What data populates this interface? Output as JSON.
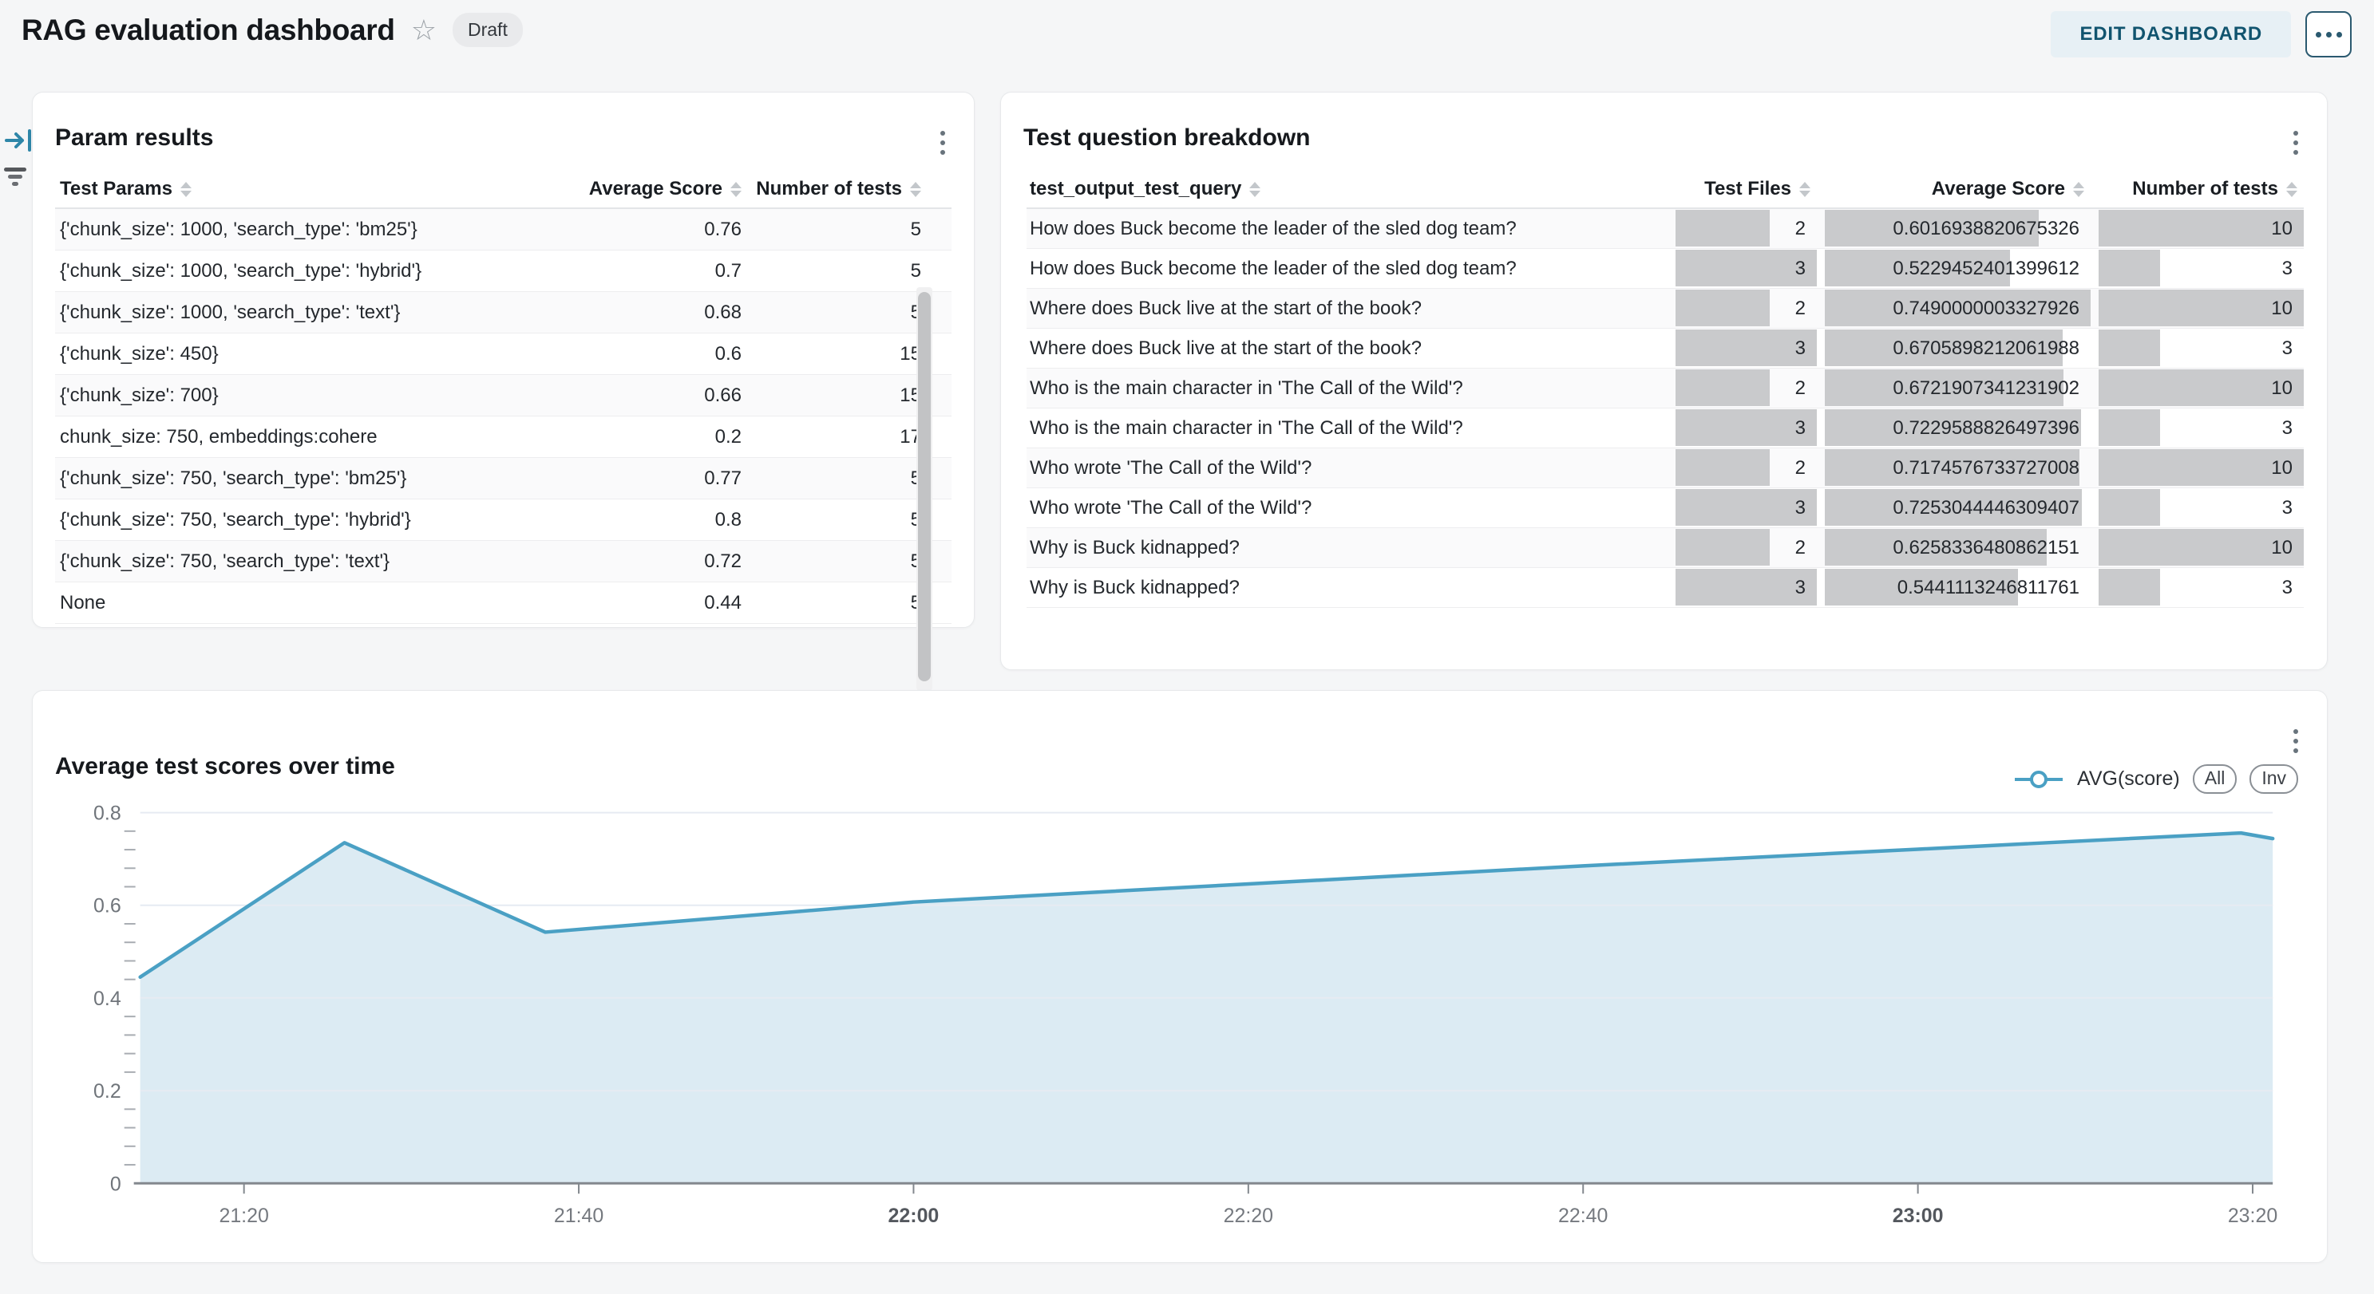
{
  "header": {
    "title": "RAG evaluation dashboard",
    "status_badge": "Draft",
    "edit_button": "EDIT DASHBOARD",
    "icons": {
      "star": "star-outline",
      "more": "ellipsis-menu"
    }
  },
  "rail": {
    "icons": [
      "expand-panel-icon",
      "filter-icon"
    ]
  },
  "param_results": {
    "title": "Param results",
    "columns": [
      "Test Params",
      "Average Score",
      "Number of tests"
    ],
    "rows": [
      {
        "params": "{'chunk_size': 1000, 'search_type': 'bm25'}",
        "avg_score": "0.76",
        "num_tests": "5"
      },
      {
        "params": "{'chunk_size': 1000, 'search_type': 'hybrid'}",
        "avg_score": "0.7",
        "num_tests": "5"
      },
      {
        "params": "{'chunk_size': 1000, 'search_type': 'text'}",
        "avg_score": "0.68",
        "num_tests": "5"
      },
      {
        "params": "{'chunk_size': 450}",
        "avg_score": "0.6",
        "num_tests": "15"
      },
      {
        "params": "{'chunk_size': 700}",
        "avg_score": "0.66",
        "num_tests": "15"
      },
      {
        "params": "chunk_size: 750, embeddings:cohere",
        "avg_score": "0.2",
        "num_tests": "17"
      },
      {
        "params": "{'chunk_size': 750, 'search_type': 'bm25'}",
        "avg_score": "0.77",
        "num_tests": "5"
      },
      {
        "params": "{'chunk_size': 750, 'search_type': 'hybrid'}",
        "avg_score": "0.8",
        "num_tests": "5"
      },
      {
        "params": "{'chunk_size': 750, 'search_type': 'text'}",
        "avg_score": "0.72",
        "num_tests": "5"
      },
      {
        "params": "None",
        "avg_score": "0.44",
        "num_tests": "5"
      }
    ]
  },
  "question_breakdown": {
    "title": "Test question breakdown",
    "columns": [
      "test_output_test_query",
      "Test Files",
      "Average Score",
      "Number of tests"
    ],
    "bar_max": {
      "test_files": 3,
      "avg_score": 0.7490000003327926,
      "num_tests": 10
    },
    "bar_color": "#c9cacc",
    "rows": [
      {
        "query": "How does Buck become the leader of the sled dog team?",
        "test_files": "2",
        "avg_score": "0.6016938820675326",
        "num_tests": "10"
      },
      {
        "query": "How does Buck become the leader of the sled dog team?",
        "test_files": "3",
        "avg_score": "0.5229452401399612",
        "num_tests": "3"
      },
      {
        "query": "Where does Buck live at the start of the book?",
        "test_files": "2",
        "avg_score": "0.7490000003327926",
        "num_tests": "10"
      },
      {
        "query": "Where does Buck live at the start of the book?",
        "test_files": "3",
        "avg_score": "0.6705898212061988",
        "num_tests": "3"
      },
      {
        "query": "Who is the main character in 'The Call of the Wild'?",
        "test_files": "2",
        "avg_score": "0.6721907341231902",
        "num_tests": "10"
      },
      {
        "query": "Who is the main character in 'The Call of the Wild'?",
        "test_files": "3",
        "avg_score": "0.7229588826497396",
        "num_tests": "3"
      },
      {
        "query": "Who wrote 'The Call of the Wild'?",
        "test_files": "2",
        "avg_score": "0.7174576733727008",
        "num_tests": "10"
      },
      {
        "query": "Who wrote 'The Call of the Wild'?",
        "test_files": "3",
        "avg_score": "0.7253044446309407",
        "num_tests": "3"
      },
      {
        "query": "Why is Buck kidnapped?",
        "test_files": "2",
        "avg_score": "0.6258336480862151",
        "num_tests": "10"
      },
      {
        "query": "Why is Buck kidnapped?",
        "test_files": "3",
        "avg_score": "0.5441113246811761",
        "num_tests": "3"
      }
    ]
  },
  "chart_panel": {
    "title": "Average test scores over time",
    "legend_buttons": [
      "All",
      "Inv"
    ]
  },
  "chart_data": {
    "type": "area",
    "title": "Average test scores over time",
    "legend": {
      "label": "AVG(score)",
      "position": "top-right"
    },
    "x_unit": "minutes_after_21:00",
    "xlim_minutes": [
      13.8,
      141.2
    ],
    "ylim": [
      0,
      0.8
    ],
    "y_ticks": [
      0,
      0.2,
      0.4,
      0.6,
      0.8
    ],
    "y_minor_step": 0.04,
    "grid": true,
    "x_ticks": [
      {
        "minutes": 20,
        "label": "21:20",
        "bold": false
      },
      {
        "minutes": 40,
        "label": "21:40",
        "bold": false
      },
      {
        "minutes": 60,
        "label": "22:00",
        "bold": true
      },
      {
        "minutes": 80,
        "label": "22:20",
        "bold": false
      },
      {
        "minutes": 100,
        "label": "22:40",
        "bold": false
      },
      {
        "minutes": 120,
        "label": "23:00",
        "bold": true
      },
      {
        "minutes": 140,
        "label": "23:20",
        "bold": false
      }
    ],
    "series": [
      {
        "name": "AVG(score)",
        "points": [
          [
            13.8,
            0.445
          ],
          [
            26.0,
            0.735
          ],
          [
            38.0,
            0.542
          ],
          [
            60.0,
            0.607
          ],
          [
            80.0,
            0.646
          ],
          [
            100.0,
            0.685
          ],
          [
            120.0,
            0.721
          ],
          [
            139.3,
            0.756
          ],
          [
            141.2,
            0.744
          ]
        ]
      }
    ],
    "colors": {
      "line": "#4aa0c4",
      "fill": "#dcebf3",
      "grid": "#e6ebf2",
      "axis": "#83888e"
    }
  },
  "theme": {
    "accent_teal": "#11546f",
    "page_bg": "#f5f6f7",
    "panel_bg": "#ffffff"
  }
}
